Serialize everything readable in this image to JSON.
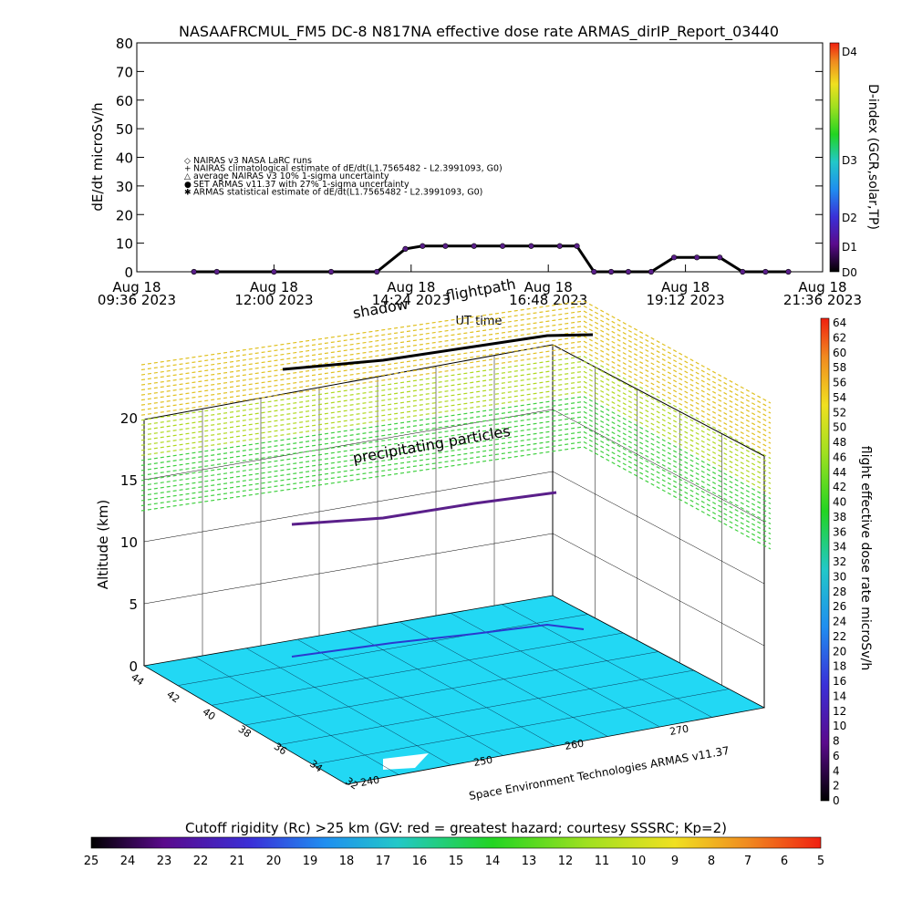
{
  "chart_data": [
    {
      "type": "line",
      "title": "NASAAFRCMUL_FM5 DC-8    N817NA effective dose rate ARMAS_dirIP_Report_03440",
      "ylabel": "dE/dt microSv/h",
      "xlabel": "UT time",
      "ylim": [
        0,
        80
      ],
      "y_ticks": [
        "0",
        "10",
        "20",
        "30",
        "40",
        "50",
        "60",
        "70",
        "80"
      ],
      "x_ticks": [
        {
          "line1": "Aug 18",
          "line2": "09:36 2023"
        },
        {
          "line1": "Aug 18",
          "line2": "12:00 2023"
        },
        {
          "line1": "Aug 18",
          "line2": "14:24 2023"
        },
        {
          "line1": "Aug 18",
          "line2": "16:48 2023"
        },
        {
          "line1": "Aug 18",
          "line2": "19:12 2023"
        },
        {
          "line1": "Aug 18",
          "line2": "21:36 2023"
        }
      ],
      "legend": [
        {
          "symbol": "◇",
          "label": "NAIRAS v3 NASA LaRC runs"
        },
        {
          "symbol": "+",
          "label": "NAIRAS climatological estimate of dE/dt(L1.7565482 - L2.3991093, G0)"
        },
        {
          "symbol": "△",
          "label": "average NAIRAS v3 10% 1-sigma uncertainty"
        },
        {
          "symbol": "●",
          "label": "SET ARMAS v11.37 with 27% 1-sigma uncertainty"
        },
        {
          "symbol": "✱",
          "label": "ARMAS statistical estimate of dE/dt(L1.7565482 - L2.3991093, G0)"
        }
      ],
      "right_axis": {
        "label": "D-index (GCR,solar,TP)",
        "ticks": [
          "D0",
          "D1",
          "D2",
          "D3",
          "D4"
        ]
      },
      "series": [
        {
          "x_hours": [
            10.6,
            11,
            12,
            13,
            13.8,
            14.3,
            14.6,
            15.0,
            15.5,
            16.0,
            16.5,
            17.0,
            17.3,
            17.6,
            17.9,
            18.2,
            18.6,
            19.0,
            19.4,
            19.8,
            20.2,
            20.6,
            21.0
          ],
          "values": [
            0,
            0,
            0,
            0,
            0,
            8,
            9,
            9,
            9,
            9,
            9,
            9,
            9,
            0,
            0,
            0,
            0,
            5,
            5,
            5,
            0,
            0,
            0
          ]
        }
      ]
    },
    {
      "type": "scatter",
      "title": "",
      "ylabel": "Altitude (km)",
      "zlim": [
        0,
        20
      ],
      "z_ticks": [
        "0",
        "5",
        "10",
        "15",
        "20"
      ],
      "lat_ticks": [
        "44",
        "42",
        "40",
        "38",
        "36",
        "34",
        "32"
      ],
      "lon_ticks": [
        "240",
        "250",
        "260",
        "270"
      ],
      "annotations": [
        "shadow",
        "flightpath",
        "precipitating particles"
      ],
      "credit": "Space Environment Technologies ARMAS v11.37",
      "colorbar_right": {
        "label": "flight effective dose rate microSv/h",
        "ticks": [
          "0",
          "2",
          "4",
          "6",
          "8",
          "10",
          "12",
          "14",
          "16",
          "18",
          "20",
          "22",
          "24",
          "26",
          "28",
          "30",
          "32",
          "34",
          "36",
          "38",
          "40",
          "42",
          "44",
          "46",
          "48",
          "50",
          "52",
          "54",
          "56",
          "58",
          "60",
          "62",
          "64"
        ]
      },
      "colorbar_bottom": {
        "label": "Cutoff rigidity (Rc) >25 km (GV: red = greatest hazard; courtesy SSSRC; Kp=2)",
        "ticks": [
          "25",
          "24",
          "23",
          "22",
          "21",
          "20",
          "19",
          "18",
          "17",
          "16",
          "15",
          "14",
          "13",
          "12",
          "11",
          "10",
          "9",
          "8",
          "7",
          "6",
          "5"
        ]
      }
    }
  ]
}
